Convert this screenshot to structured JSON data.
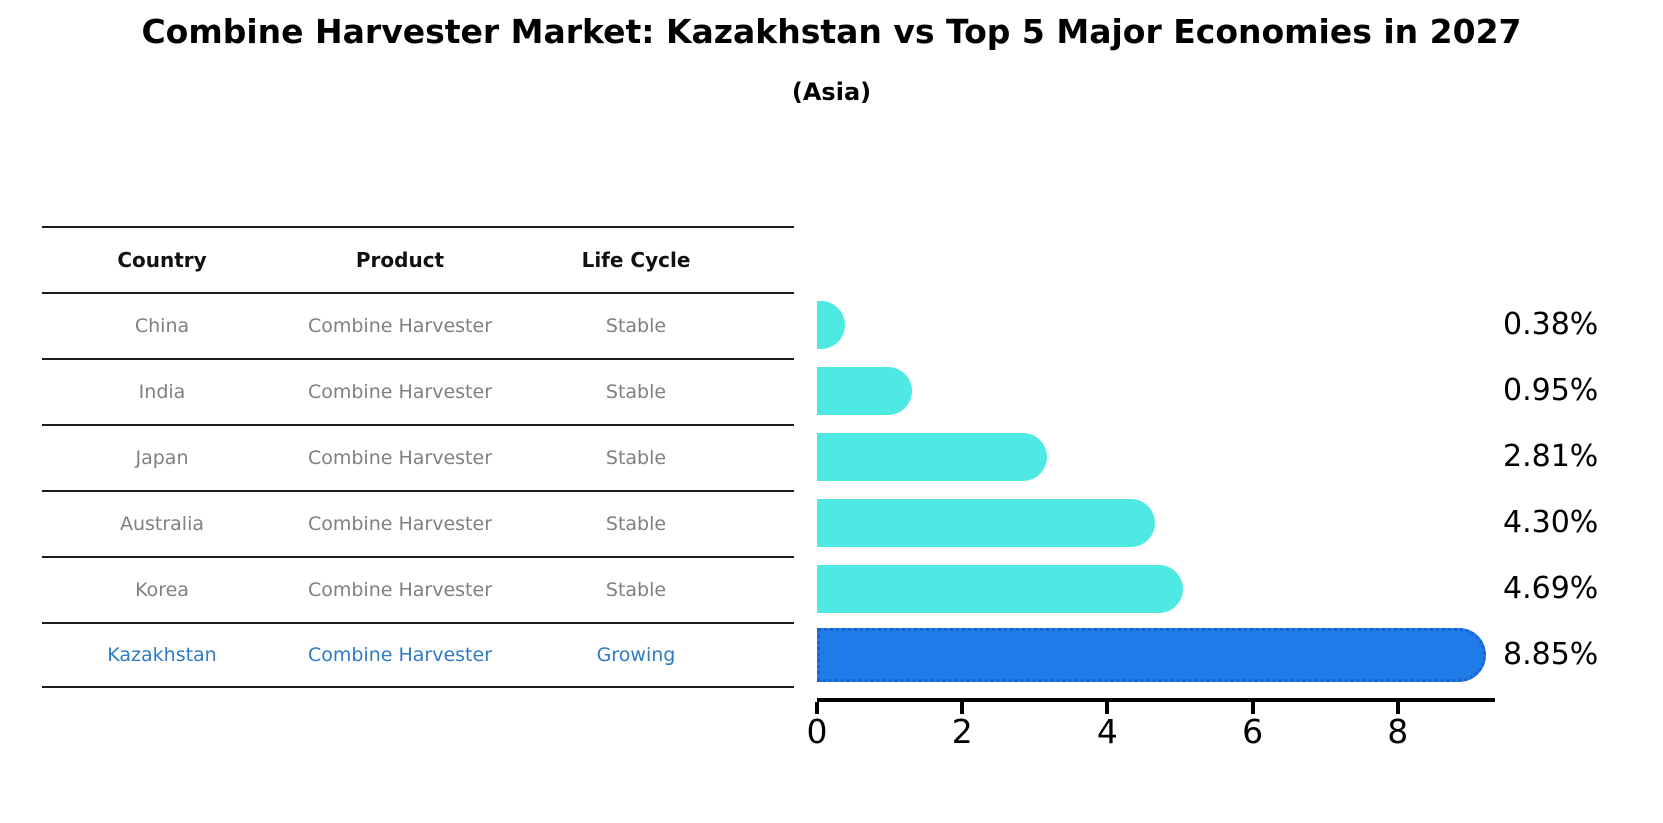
{
  "title": "Combine Harvester Market: Kazakhstan vs Top 5 Major Economies in 2027",
  "subtitle": "(Asia)",
  "table": {
    "headers": [
      "Country",
      "Product",
      "Life Cycle"
    ],
    "rows": [
      {
        "country": "China",
        "product": "Combine Harvester",
        "life_cycle": "Stable",
        "highlight": false
      },
      {
        "country": "India",
        "product": "Combine Harvester",
        "life_cycle": "Stable",
        "highlight": false
      },
      {
        "country": "Japan",
        "product": "Combine Harvester",
        "life_cycle": "Stable",
        "highlight": false
      },
      {
        "country": "Australia",
        "product": "Combine Harvester",
        "life_cycle": "Stable",
        "highlight": false
      },
      {
        "country": "Korea",
        "product": "Combine Harvester",
        "life_cycle": "Stable",
        "highlight": false
      },
      {
        "country": "Kazakhstan",
        "product": "Combine Harvester",
        "life_cycle": "Growing",
        "highlight": true
      }
    ]
  },
  "chart_data": {
    "type": "bar",
    "orientation": "horizontal",
    "title": "Combine Harvester Market: Kazakhstan vs Top 5 Major Economies in 2027",
    "subtitle": "(Asia)",
    "categories": [
      "China",
      "India",
      "Japan",
      "Australia",
      "Korea",
      "Kazakhstan"
    ],
    "values": [
      0.38,
      0.95,
      2.81,
      4.3,
      4.69,
      8.85
    ],
    "value_labels": [
      "0.38%",
      "0.95%",
      "2.81%",
      "4.30%",
      "4.69%",
      "8.85%"
    ],
    "x_ticks": [
      "0",
      "2",
      "4",
      "6",
      "8"
    ],
    "xlim": [
      0,
      9.3
    ],
    "grid": false,
    "legend": false,
    "highlight_index": 5,
    "colors": {
      "bar": "#4DE9E2",
      "highlight_bar": "#1F7BE8",
      "highlight_edge": "#1763D2",
      "row_text": "#808080",
      "highlight_row_text": "#2E7BC4",
      "axis": "#000000",
      "label_text": "#000000"
    }
  }
}
